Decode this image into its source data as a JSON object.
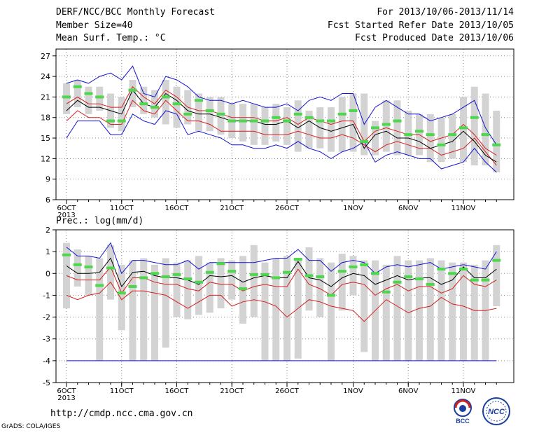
{
  "header": {
    "title": "DERF/NCC/BCC Monthly Forecast",
    "member_size": "Member Size=40",
    "variable_top": "Mean Surf. Temp.: °C",
    "period": "For 2013/10/06-2013/11/14",
    "started": "Fcst Started Refer Date 2013/10/05",
    "produced": "Fcst Produced Date 2013/10/06"
  },
  "footer": {
    "url": "http://cmdp.ncc.cma.gov.cn",
    "grads": "GrADS: COLA/IGES",
    "logo_left_text": "BCC",
    "logo_right_text": "NCC"
  },
  "colors": {
    "box": "#d3d3d3",
    "obs": "#4cd74c",
    "mean": "#000000",
    "spread_inner": "#d41f1f",
    "spread_outer": "#1414d2"
  },
  "chart_data": [
    {
      "type": "line",
      "ylabel": "Mean Surf. Temp.: °C",
      "ylim": [
        6,
        28
      ],
      "yticks": [
        6,
        9,
        12,
        15,
        18,
        21,
        24,
        27
      ],
      "xticks": [
        "6OCT",
        "11OCT",
        "16OCT",
        "21OCT",
        "26OCT",
        "1NOV",
        "6NOV",
        "11NOV"
      ],
      "xtick_days": [
        1,
        6,
        11,
        16,
        21,
        27,
        32,
        37
      ],
      "xsublabel": "2013",
      "days": [
        1,
        2,
        3,
        4,
        5,
        6,
        7,
        8,
        9,
        10,
        11,
        12,
        13,
        14,
        15,
        16,
        17,
        18,
        19,
        20,
        21,
        22,
        23,
        24,
        25,
        26,
        27,
        28,
        29,
        30,
        31,
        32,
        33,
        34,
        35,
        36,
        37,
        38,
        39,
        40
      ],
      "box_low": [
        18.5,
        19.5,
        18.5,
        19.0,
        16.5,
        16.0,
        19.5,
        18.5,
        18.0,
        17.0,
        16.5,
        17.0,
        16.0,
        16.0,
        15.5,
        15.0,
        14.5,
        14.0,
        14.0,
        14.5,
        14.0,
        13.0,
        13.5,
        13.5,
        13.0,
        13.0,
        13.0,
        12.5,
        12.5,
        13.0,
        12.5,
        12.5,
        12.5,
        11.5,
        11.5,
        12.0,
        11.5,
        11.0,
        11.0,
        10.0
      ],
      "box_high": [
        23.0,
        23.5,
        22.5,
        22.5,
        21.5,
        21.0,
        23.5,
        22.5,
        22.0,
        23.5,
        22.5,
        22.0,
        21.5,
        21.0,
        21.0,
        20.0,
        20.0,
        20.0,
        19.5,
        20.0,
        19.5,
        20.5,
        19.0,
        19.5,
        19.5,
        21.0,
        21.5,
        21.5,
        17.5,
        20.5,
        20.5,
        19.0,
        18.5,
        18.5,
        18.0,
        18.5,
        21.0,
        22.5,
        21.5,
        19.0
      ],
      "series": [
        {
          "role": "spread_outer",
          "values": [
            15.0,
            17.5,
            17.5,
            17.5,
            15.5,
            15.5,
            18.5,
            17.5,
            17.0,
            19.0,
            18.5,
            15.5,
            16.0,
            15.5,
            15.0,
            14.0,
            14.0,
            13.5,
            13.5,
            14.0,
            13.5,
            14.5,
            13.5,
            13.0,
            12.0,
            13.0,
            13.5,
            14.5,
            11.5,
            12.5,
            13.0,
            12.5,
            12.0,
            12.0,
            10.5,
            11.0,
            11.5,
            13.5,
            11.5,
            10.0
          ]
        },
        {
          "role": "spread_inner",
          "values": [
            17.5,
            19.0,
            18.0,
            18.0,
            17.0,
            17.0,
            20.5,
            19.0,
            18.5,
            20.5,
            19.0,
            17.5,
            17.5,
            17.0,
            16.0,
            16.0,
            16.0,
            16.0,
            15.5,
            15.5,
            15.5,
            16.0,
            15.5,
            15.0,
            15.0,
            15.5,
            15.0,
            14.0,
            13.0,
            14.0,
            14.5,
            14.0,
            13.5,
            13.5,
            12.5,
            13.0,
            13.5,
            15.0,
            13.0,
            11.0
          ]
        },
        {
          "role": "mean",
          "values": [
            19.0,
            20.5,
            19.5,
            19.5,
            19.0,
            18.5,
            22.0,
            20.0,
            19.5,
            21.5,
            20.5,
            19.0,
            18.5,
            18.5,
            18.0,
            17.5,
            17.5,
            17.5,
            17.0,
            17.0,
            17.5,
            16.5,
            17.5,
            16.5,
            16.0,
            16.5,
            17.0,
            13.5,
            15.5,
            16.0,
            15.0,
            15.0,
            14.5,
            13.5,
            14.0,
            14.5,
            16.0,
            14.5,
            12.5,
            11.5
          ]
        },
        {
          "role": "spread_inner",
          "values": [
            20.0,
            21.0,
            20.0,
            20.0,
            19.5,
            19.5,
            22.5,
            21.0,
            20.0,
            22.0,
            21.0,
            19.5,
            19.0,
            19.0,
            18.5,
            18.0,
            18.0,
            18.0,
            17.5,
            17.5,
            18.0,
            17.0,
            18.0,
            17.5,
            17.0,
            17.5,
            17.5,
            14.5,
            16.0,
            16.5,
            16.0,
            15.5,
            15.5,
            14.5,
            15.0,
            15.5,
            17.0,
            15.5,
            13.5,
            12.5
          ]
        },
        {
          "role": "spread_outer",
          "values": [
            23.0,
            23.5,
            23.0,
            24.0,
            24.5,
            23.5,
            25.5,
            21.5,
            21.0,
            24.0,
            23.5,
            22.5,
            21.0,
            20.5,
            20.5,
            20.0,
            20.5,
            20.0,
            19.5,
            19.5,
            20.0,
            19.0,
            20.5,
            21.0,
            20.5,
            21.5,
            21.5,
            17.0,
            19.5,
            20.5,
            19.5,
            18.5,
            18.5,
            17.5,
            18.0,
            18.5,
            19.5,
            20.5,
            16.5,
            14.0
          ]
        }
      ],
      "obs": [
        21.0,
        22.5,
        21.5,
        21.0,
        17.5,
        17.5,
        22.0,
        20.0,
        19.5,
        21.0,
        20.0,
        18.5,
        20.5,
        19.0,
        18.5,
        17.5,
        17.5,
        17.5,
        17.5,
        18.0,
        17.5,
        18.5,
        18.0,
        17.5,
        17.5,
        18.5,
        19.0,
        14.5,
        16.5,
        17.0,
        17.5,
        15.5,
        16.0,
        15.5,
        14.0,
        15.5,
        16.5,
        18.0,
        15.5,
        14.0
      ]
    },
    {
      "type": "line",
      "ylabel": "Prec.: log(mm/d)",
      "ylim": [
        -5,
        2
      ],
      "yticks": [
        -5,
        -4,
        -3,
        -2,
        -1,
        0,
        1,
        2
      ],
      "xticks": [
        "6OCT",
        "11OCT",
        "16OCT",
        "21OCT",
        "26OCT",
        "1NOV",
        "6NOV",
        "11NOV"
      ],
      "xtick_days": [
        1,
        6,
        11,
        16,
        21,
        27,
        32,
        37
      ],
      "xsublabel": "2013",
      "days": [
        1,
        2,
        3,
        4,
        5,
        6,
        7,
        8,
        9,
        10,
        11,
        12,
        13,
        14,
        15,
        16,
        17,
        18,
        19,
        20,
        21,
        22,
        23,
        24,
        25,
        26,
        27,
        28,
        29,
        30,
        31,
        32,
        33,
        34,
        35,
        36,
        37,
        38,
        39,
        40
      ],
      "box_low": [
        -1.6,
        -0.6,
        -1.0,
        -4.0,
        -1.2,
        -2.6,
        -4.0,
        -4.0,
        -4.0,
        -3.4,
        -2.0,
        -2.1,
        -1.9,
        -1.8,
        -1.6,
        -1.2,
        -2.3,
        -2.0,
        -4.0,
        -4.0,
        -4.0,
        -3.9,
        -1.7,
        -2.0,
        -4.0,
        -1.7,
        -1.0,
        -3.6,
        -4.0,
        -4.0,
        -4.0,
        -4.0,
        -4.0,
        -4.0,
        -4.0,
        -4.0,
        -4.0,
        -4.0,
        -4.0,
        -1.5
      ],
      "box_high": [
        1.4,
        1.1,
        0.8,
        0.7,
        1.3,
        0.4,
        0.6,
        0.7,
        0.4,
        0.7,
        0.5,
        0.6,
        0.8,
        0.5,
        0.7,
        0.6,
        0.8,
        1.3,
        0.5,
        0.7,
        0.8,
        0.6,
        1.2,
        0.7,
        0.5,
        0.9,
        0.8,
        0.6,
        0.6,
        0.4,
        0.8,
        0.6,
        0.6,
        0.7,
        0.6,
        0.5,
        0.5,
        0.4,
        0.6,
        1.3
      ],
      "series": [
        {
          "role": "spread_outer",
          "values": [
            -4.0,
            -4.0,
            -4.0,
            -4.0,
            -4.0,
            -4.0,
            -4.0,
            -4.0,
            -4.0,
            -4.0,
            -4.0,
            -4.0,
            -4.0,
            -4.0,
            -4.0,
            -4.0,
            -4.0,
            -4.0,
            -4.0,
            -4.0,
            -4.0,
            -4.0,
            -4.0,
            -4.0,
            -4.0,
            -4.0,
            -4.0,
            -4.0,
            -4.0,
            -4.0,
            -4.0,
            -4.0,
            -4.0,
            -4.0,
            -4.0,
            -4.0,
            -4.0,
            -4.0,
            -4.0,
            -4.0
          ]
        },
        {
          "role": "spread_inner",
          "values": [
            -1.0,
            -1.2,
            -1.0,
            -0.9,
            -0.4,
            -1.2,
            -0.8,
            -0.8,
            -0.9,
            -1.0,
            -1.3,
            -1.6,
            -1.3,
            -1.0,
            -1.0,
            -1.5,
            -1.3,
            -1.2,
            -1.3,
            -1.5,
            -2.0,
            -1.6,
            -1.2,
            -1.3,
            -1.5,
            -1.6,
            -1.7,
            -2.2,
            -1.7,
            -1.2,
            -1.5,
            -1.8,
            -1.6,
            -1.5,
            -1.1,
            -1.4,
            -1.5,
            -1.7,
            -1.7,
            -1.6
          ]
        },
        {
          "role": "mean",
          "values": [
            0.35,
            0.0,
            0.0,
            0.05,
            0.7,
            -0.6,
            0.05,
            0.1,
            -0.1,
            -0.2,
            -0.2,
            -0.3,
            -0.5,
            -0.1,
            -0.15,
            -0.1,
            -0.4,
            -0.2,
            -0.1,
            -0.2,
            -0.2,
            0.55,
            -0.2,
            -0.3,
            -0.6,
            -0.2,
            0.0,
            -0.1,
            -0.5,
            -0.3,
            -0.1,
            -0.3,
            -0.2,
            -0.2,
            -0.5,
            -0.3,
            0.3,
            -0.2,
            -0.2,
            0.2
          ]
        },
        {
          "role": "spread_inner",
          "values": [
            -0.1,
            -0.3,
            -0.3,
            -0.3,
            0.3,
            -0.9,
            -0.2,
            -0.2,
            -0.4,
            -0.5,
            -0.5,
            -0.7,
            -0.8,
            -0.4,
            -0.5,
            -0.5,
            -0.8,
            -0.6,
            -0.5,
            -0.6,
            -0.6,
            0.2,
            -0.5,
            -0.7,
            -1.0,
            -0.5,
            -0.4,
            -0.5,
            -1.0,
            -0.7,
            -0.5,
            -0.8,
            -0.6,
            -0.6,
            -0.9,
            -0.7,
            -0.1,
            -0.5,
            -0.6,
            -0.3
          ]
        },
        {
          "role": "spread_outer",
          "values": [
            1.2,
            0.8,
            0.8,
            0.7,
            1.4,
            0.0,
            0.6,
            0.6,
            0.5,
            0.4,
            0.4,
            0.6,
            0.2,
            0.5,
            0.5,
            0.5,
            0.5,
            0.5,
            0.6,
            0.7,
            0.7,
            1.1,
            0.6,
            0.6,
            0.1,
            0.5,
            0.6,
            0.5,
            0.0,
            0.3,
            0.4,
            0.3,
            0.4,
            0.5,
            0.2,
            0.3,
            0.4,
            0.3,
            0.2,
            1.0
          ]
        }
      ],
      "obs": [
        0.85,
        0.4,
        0.3,
        -0.55,
        0.25,
        -0.9,
        -0.6,
        -0.2,
        0.0,
        -0.15,
        -0.05,
        -0.25,
        -0.4,
        0.05,
        0.45,
        0.1,
        -0.7,
        -0.05,
        -0.05,
        -0.2,
        0.05,
        0.65,
        -0.1,
        -0.15,
        -1.0,
        0.1,
        0.3,
        0.4,
        0.0,
        -0.85,
        -0.4,
        -0.15,
        -0.25,
        -0.5,
        0.2,
        0.0,
        0.2,
        -0.3,
        -0.3,
        0.6
      ]
    }
  ]
}
